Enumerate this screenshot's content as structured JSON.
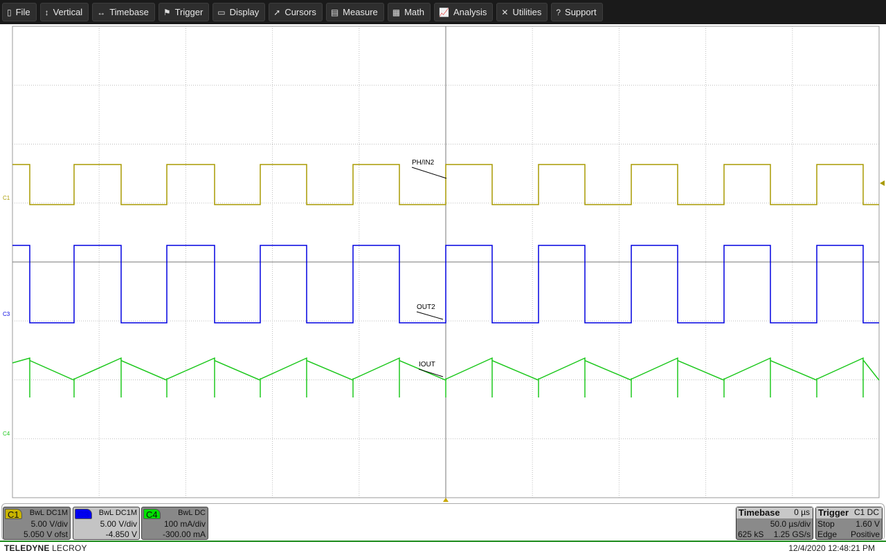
{
  "menu": [
    {
      "label": "File",
      "icon": "clipboard-icon",
      "glyph": "▯"
    },
    {
      "label": "Vertical",
      "icon": "vertical-arrows-icon",
      "glyph": "↕"
    },
    {
      "label": "Timebase",
      "icon": "horizontal-arrows-icon",
      "glyph": "↔"
    },
    {
      "label": "Trigger",
      "icon": "flag-icon",
      "glyph": "⚑"
    },
    {
      "label": "Display",
      "icon": "display-icon",
      "glyph": "▭"
    },
    {
      "label": "Cursors",
      "icon": "cursor-icon",
      "glyph": "➚"
    },
    {
      "label": "Measure",
      "icon": "measure-icon",
      "glyph": "▤"
    },
    {
      "label": "Math",
      "icon": "calculator-icon",
      "glyph": "▦"
    },
    {
      "label": "Analysis",
      "icon": "chart-icon",
      "glyph": "📈"
    },
    {
      "label": "Utilities",
      "icon": "tools-icon",
      "glyph": "✕"
    },
    {
      "label": "Support",
      "icon": "help-icon",
      "glyph": "?"
    }
  ],
  "traces": {
    "c1": {
      "label": "PH/IN2",
      "marker": "C1",
      "color": "#a89a00"
    },
    "c3": {
      "label": "OUT2",
      "marker": "C3",
      "color": "#0000e0"
    },
    "c4": {
      "label": "IOUT",
      "marker": "C4",
      "color": "#1ec81e"
    }
  },
  "channels": [
    {
      "tag": "C1",
      "coupling": "BwL  DC1M",
      "scale": "5.00 V/div",
      "offset": "5.050 V ofst",
      "color": "#c8b400"
    },
    {
      "tag": "C3",
      "coupling": "BwL  DC1M",
      "scale": "5.00 V/div",
      "offset": "-4.850 V",
      "color": "#0000f0"
    },
    {
      "tag": "C4",
      "coupling": "BwL  DC",
      "scale": "100 mA/div",
      "offset": "-300.00 mA",
      "color": "#00e000"
    }
  ],
  "timebase": {
    "title": "Timebase",
    "delay": "0 µs",
    "scale": "50.0 µs/div",
    "samples": "625 kS",
    "rate": "1.25 GS/s"
  },
  "trigger": {
    "title": "Trigger",
    "source": "C1  DC",
    "mode": "Stop",
    "level": "1.60 V",
    "type": "Edge",
    "slope": "Positive"
  },
  "brand": {
    "bold": "TELEDYNE",
    "light": " LECROY"
  },
  "datetime": "12/4/2020 12:48:21 PM"
}
